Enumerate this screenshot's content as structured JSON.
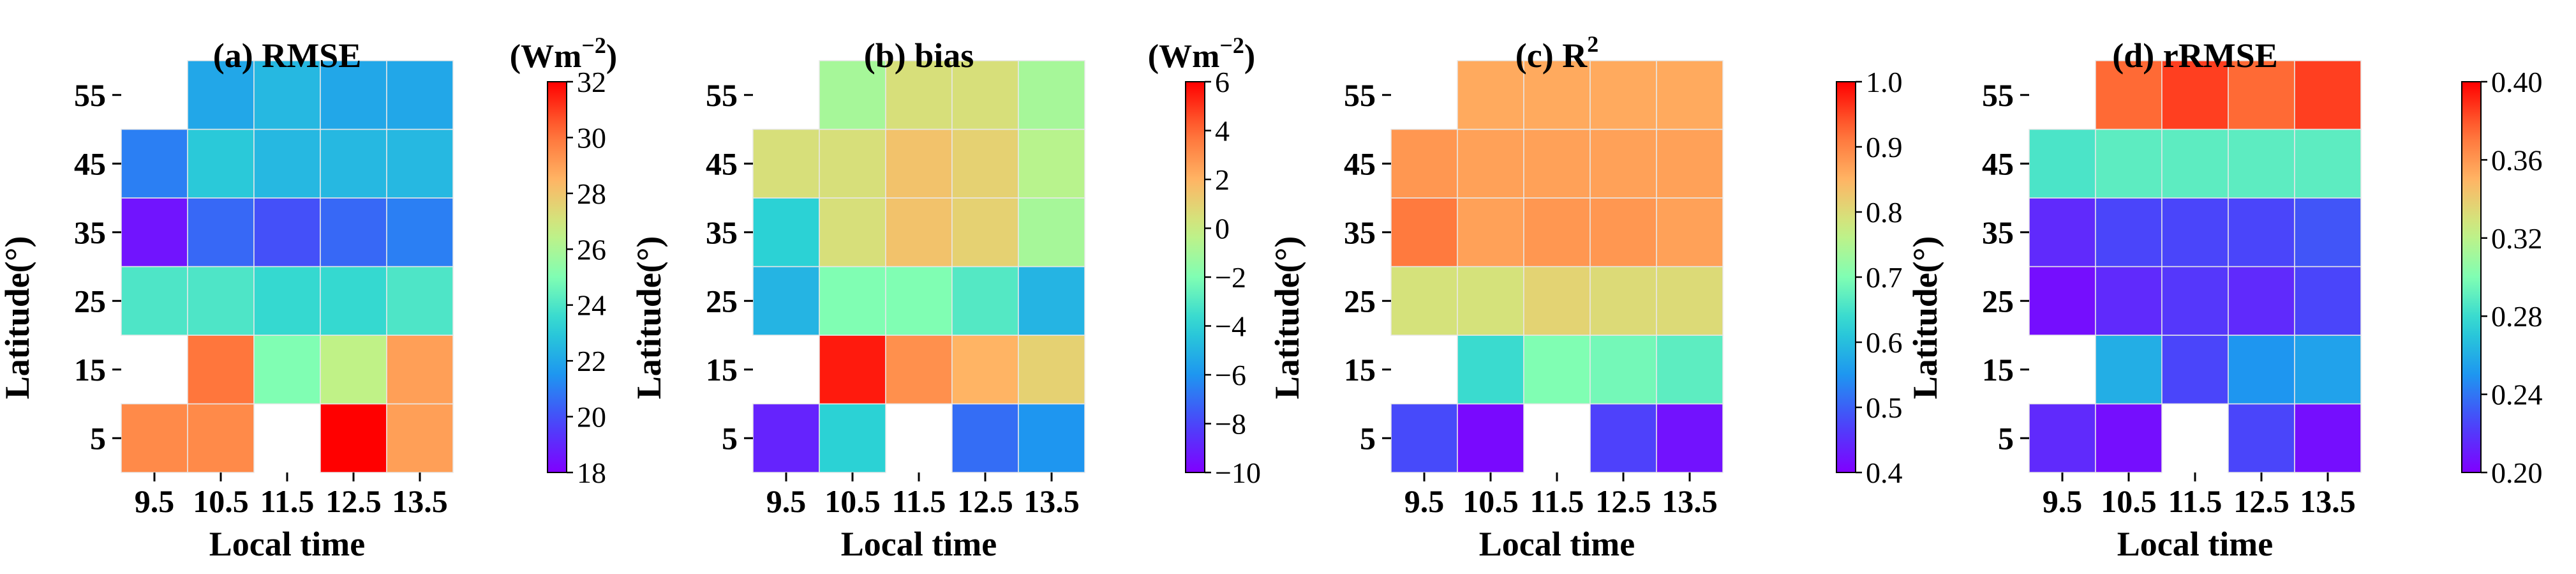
{
  "chart_data": [
    {
      "type": "heatmap",
      "panel": "a",
      "title": "(a) RMSE",
      "unit": "(Wm^-2)",
      "xlabel": "Local time",
      "ylabel": "Latitude(°)",
      "x_ticks": [
        "9.5",
        "10.5",
        "11.5",
        "12.5",
        "13.5"
      ],
      "y_ticks": [
        "5",
        "15",
        "25",
        "35",
        "45",
        "55"
      ],
      "colorbar": {
        "min": 18,
        "max": 32,
        "ticks": [
          "18",
          "20",
          "22",
          "24",
          "26",
          "28",
          "30",
          "32"
        ]
      },
      "values": [
        [
          29.5,
          29.5,
          null,
          32.0,
          29.0
        ],
        [
          null,
          30.0,
          25.0,
          26.5,
          29.0
        ],
        [
          24.0,
          24.0,
          23.5,
          23.5,
          24.0
        ],
        [
          18.5,
          20.5,
          20.0,
          20.5,
          21.0
        ],
        [
          21.0,
          23.0,
          22.5,
          22.5,
          22.5
        ],
        [
          null,
          22.0,
          22.5,
          22.0,
          22.0
        ]
      ]
    },
    {
      "type": "heatmap",
      "panel": "b",
      "title": "(b) bias",
      "unit": "(Wm^-2)",
      "xlabel": "Local time",
      "ylabel": "Latitude(°)",
      "x_ticks": [
        "9.5",
        "10.5",
        "11.5",
        "12.5",
        "13.5"
      ],
      "y_ticks": [
        "5",
        "15",
        "25",
        "35",
        "45",
        "55"
      ],
      "colorbar": {
        "min": -10,
        "max": 6,
        "ticks": [
          "−10",
          "−8",
          "−6",
          "−4",
          "−2",
          "0",
          "2",
          "4",
          "6"
        ]
      },
      "values": [
        [
          -9.0,
          -4.0,
          null,
          -7.0,
          -6.0
        ],
        [
          null,
          5.5,
          3.0,
          2.0,
          1.0
        ],
        [
          -5.0,
          -2.0,
          -2.0,
          -3.0,
          -5.0
        ],
        [
          -4.0,
          0.5,
          1.5,
          1.0,
          -1.0
        ],
        [
          0.5,
          0.5,
          1.5,
          1.0,
          -0.5
        ],
        [
          null,
          -1.0,
          0.5,
          0.5,
          -1.0
        ]
      ]
    },
    {
      "type": "heatmap",
      "panel": "c",
      "title": "(c) R^2",
      "unit": "",
      "xlabel": "Local time",
      "ylabel": "Latitude(°)",
      "x_ticks": [
        "9.5",
        "10.5",
        "11.5",
        "12.5",
        "13.5"
      ],
      "y_ticks": [
        "5",
        "15",
        "25",
        "35",
        "45",
        "55"
      ],
      "colorbar": {
        "min": 0.4,
        "max": 1.0,
        "ticks": [
          "0.4",
          "0.5",
          "0.6",
          "0.7",
          "0.8",
          "0.9",
          "1.0"
        ]
      },
      "values": [
        [
          0.48,
          0.41,
          null,
          0.47,
          0.42
        ],
        [
          null,
          0.64,
          0.7,
          0.69,
          0.67
        ],
        [
          0.79,
          0.79,
          0.81,
          0.8,
          0.8
        ],
        [
          0.91,
          0.87,
          0.88,
          0.88,
          0.87
        ],
        [
          0.88,
          0.87,
          0.87,
          0.87,
          0.87
        ],
        [
          null,
          0.86,
          0.86,
          0.86,
          0.86
        ]
      ]
    },
    {
      "type": "heatmap",
      "panel": "d",
      "title": "(d) rRMSE",
      "unit": "",
      "xlabel": "Local time",
      "ylabel": "Latitude(°)",
      "x_ticks": [
        "9.5",
        "10.5",
        "11.5",
        "12.5",
        "13.5"
      ],
      "y_ticks": [
        "5",
        "15",
        "25",
        "35",
        "45",
        "55"
      ],
      "colorbar": {
        "min": 0.2,
        "max": 0.4,
        "ticks": [
          "0.20",
          "0.24",
          "0.28",
          "0.32",
          "0.36",
          "0.40"
        ]
      },
      "values": [
        [
          0.215,
          0.205,
          null,
          0.225,
          0.205
        ],
        [
          null,
          0.26,
          0.225,
          0.25,
          0.255
        ],
        [
          0.205,
          0.215,
          0.22,
          0.215,
          0.225
        ],
        [
          0.215,
          0.225,
          0.225,
          0.225,
          0.23
        ],
        [
          0.285,
          0.29,
          0.29,
          0.29,
          0.29
        ],
        [
          null,
          0.375,
          0.385,
          0.375,
          0.385
        ]
      ]
    }
  ]
}
